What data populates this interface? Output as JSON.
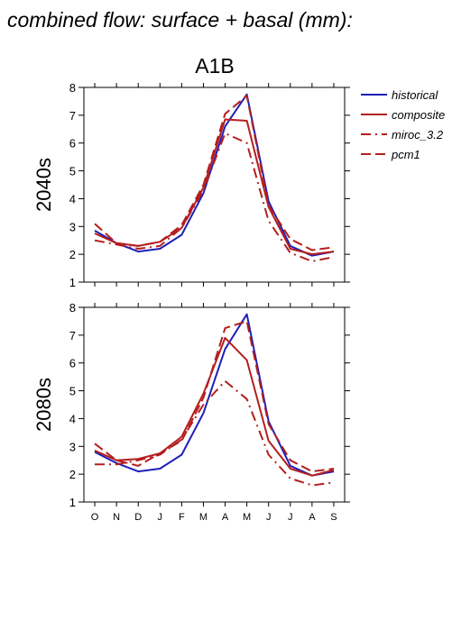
{
  "figure_title": "combined flow: surface + basal (mm):",
  "scenario_title": "A1B",
  "colors": {
    "historical": "#1f1fb8",
    "model": "#b41e1e",
    "axis": "#000000"
  },
  "chart_data": [
    {
      "type": "line",
      "panel_label": "2040s",
      "categories": [
        "O",
        "N",
        "D",
        "J",
        "F",
        "M",
        "A",
        "M",
        "J",
        "J",
        "A",
        "S"
      ],
      "xlabel": "",
      "ylabel": "",
      "ylim": [
        1,
        8
      ],
      "yticks": [
        1,
        2,
        3,
        4,
        5,
        6,
        7,
        8
      ],
      "legend_position": "right",
      "series": [
        {
          "name": "historical",
          "style": "solid",
          "color": "#1f1fb8",
          "values": [
            2.85,
            2.4,
            2.1,
            2.2,
            2.7,
            4.2,
            6.6,
            7.75,
            3.9,
            2.3,
            1.95,
            2.1
          ]
        },
        {
          "name": "composite",
          "style": "solid",
          "color": "#b41e1e",
          "values": [
            2.75,
            2.4,
            2.3,
            2.45,
            2.95,
            4.4,
            6.85,
            6.8,
            3.7,
            2.2,
            2.0,
            2.1
          ]
        },
        {
          "name": "miroc_3.2",
          "style": "dashdot",
          "color": "#b41e1e",
          "values": [
            2.5,
            2.35,
            2.2,
            2.3,
            2.95,
            4.3,
            6.35,
            6.0,
            3.2,
            2.05,
            1.75,
            1.9
          ]
        },
        {
          "name": "pcm1",
          "style": "dashed",
          "color": "#b41e1e",
          "values": [
            3.1,
            2.4,
            2.3,
            2.45,
            3.05,
            4.5,
            7.05,
            7.7,
            3.75,
            2.55,
            2.15,
            2.25
          ]
        }
      ]
    },
    {
      "type": "line",
      "panel_label": "2080s",
      "categories": [
        "O",
        "N",
        "D",
        "J",
        "F",
        "M",
        "A",
        "M",
        "J",
        "J",
        "A",
        "S"
      ],
      "xlabel": "",
      "ylabel": "",
      "ylim": [
        1,
        8
      ],
      "yticks": [
        1,
        2,
        3,
        4,
        5,
        6,
        7,
        8
      ],
      "series": [
        {
          "name": "historical",
          "style": "solid",
          "color": "#1f1fb8",
          "values": [
            2.8,
            2.4,
            2.1,
            2.2,
            2.7,
            4.2,
            6.5,
            7.75,
            3.9,
            2.3,
            1.95,
            2.1
          ]
        },
        {
          "name": "composite",
          "style": "solid",
          "color": "#b41e1e",
          "values": [
            2.85,
            2.5,
            2.55,
            2.75,
            3.35,
            4.9,
            6.9,
            6.1,
            3.2,
            2.2,
            1.95,
            2.15
          ]
        },
        {
          "name": "miroc_3.2",
          "style": "dashdot",
          "color": "#b41e1e",
          "values": [
            2.35,
            2.35,
            2.5,
            2.7,
            3.25,
            4.5,
            5.35,
            4.7,
            2.7,
            1.85,
            1.6,
            1.7
          ]
        },
        {
          "name": "pcm1",
          "style": "dashed",
          "color": "#b41e1e",
          "values": [
            3.1,
            2.5,
            2.3,
            2.75,
            3.2,
            4.75,
            7.25,
            7.5,
            3.8,
            2.5,
            2.1,
            2.2
          ]
        }
      ]
    }
  ]
}
